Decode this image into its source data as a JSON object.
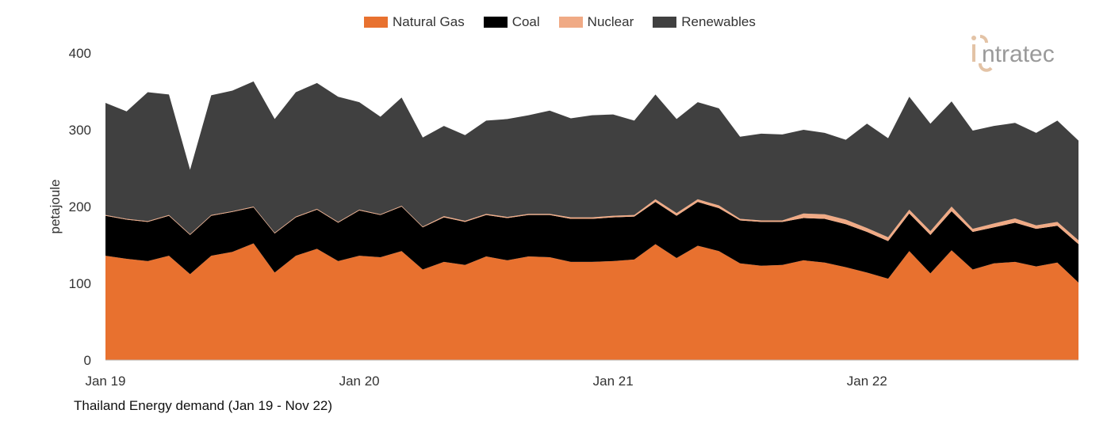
{
  "chart_data": {
    "type": "area",
    "stacked": true,
    "title": "Thailand Energy demand (Jan 19 - Nov 22)",
    "xlabel": "",
    "ylabel": "petajoule",
    "ylim": [
      0,
      400
    ],
    "yticks": [
      0,
      100,
      200,
      300,
      400
    ],
    "x_start": "2019-01",
    "x_end": "2022-11",
    "frequency": "monthly",
    "xtick_labels": [
      "Jan 19",
      "Jan 20",
      "Jan 21",
      "Jan 22"
    ],
    "legend_position": "top",
    "grid": false,
    "series": [
      {
        "name": "Natural Gas",
        "color": "#E8712F",
        "values": [
          136,
          132,
          129,
          136,
          112,
          136,
          141,
          152,
          114,
          136,
          145,
          129,
          136,
          134,
          142,
          118,
          128,
          124,
          135,
          130,
          135,
          134,
          128,
          128,
          129,
          131,
          151,
          133,
          149,
          142,
          126,
          123,
          124,
          130,
          127,
          121,
          114,
          106,
          142,
          113,
          143,
          118,
          126,
          128,
          122,
          127,
          101
        ]
      },
      {
        "name": "Coal",
        "color": "#000000",
        "values": [
          52,
          51,
          51,
          52,
          51,
          52,
          52,
          47,
          51,
          50,
          51,
          50,
          59,
          55,
          58,
          55,
          58,
          56,
          54,
          55,
          54,
          55,
          56,
          56,
          57,
          56,
          55,
          55,
          57,
          56,
          56,
          57,
          56,
          55,
          57,
          56,
          53,
          49,
          49,
          50,
          51,
          49,
          47,
          51,
          49,
          48,
          50
        ]
      },
      {
        "name": "Nuclear",
        "color": "#F0AA85",
        "values": [
          1,
          1,
          1,
          1,
          1,
          1,
          1,
          1,
          1,
          1,
          1,
          1,
          1,
          1,
          1,
          1,
          1.5,
          1.5,
          1.5,
          1.5,
          1.5,
          1.5,
          2,
          2,
          2,
          2,
          3.5,
          3.5,
          3.5,
          3.5,
          2,
          2,
          2,
          6,
          6,
          6,
          5,
          5,
          5,
          5,
          6,
          4,
          5,
          5.5,
          4.5,
          5,
          5
        ]
      },
      {
        "name": "Renewables",
        "color": "#404040",
        "values": [
          146,
          140,
          168,
          157,
          84,
          156,
          157,
          163,
          148,
          162,
          164,
          163,
          140,
          127,
          141,
          116,
          117.5,
          111.5,
          121.5,
          127.5,
          128.5,
          134.5,
          129,
          133,
          132,
          123,
          136.5,
          122.5,
          126.5,
          126.5,
          107,
          113,
          112,
          109,
          106,
          104,
          136,
          129,
          147,
          140,
          137,
          128,
          127,
          124.5,
          120.5,
          132,
          130
        ]
      }
    ]
  },
  "logo": {
    "text": "intratec",
    "color": "#9A9A9A",
    "accent": "#E3C3A6"
  }
}
